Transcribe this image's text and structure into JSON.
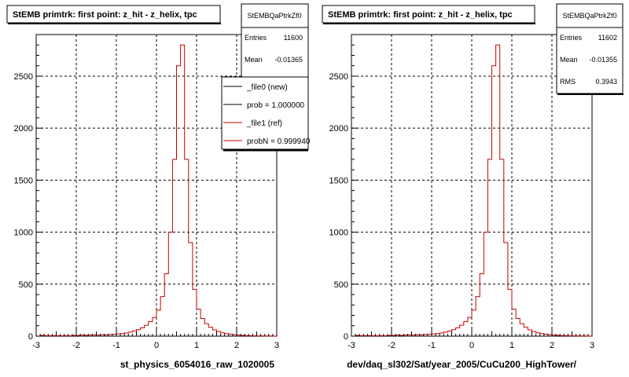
{
  "chart_data": [
    {
      "type": "line",
      "title": "StEMB primtrk: first point: z_hit - z_helix, tpc",
      "xlabel": "st_physics_6054016_raw_1020005",
      "ylabel": "",
      "xlim": [
        -3,
        3
      ],
      "ylim": [
        0,
        2900
      ],
      "xticks": [
        -3,
        -2,
        -1,
        0,
        1,
        2,
        3
      ],
      "yticks": [
        0,
        500,
        1000,
        1500,
        2000,
        2500
      ],
      "grid": true,
      "stats": {
        "name": "StEMBQaPtrkZf0",
        "entries_label": "Entries",
        "entries": "11600",
        "mean_label": "Mean",
        "mean": "-0.01365"
      },
      "legend": {
        "placement": "top-right",
        "entries": [
          {
            "label": "_file0 (new)",
            "color": "#000000"
          },
          {
            "label": "prob = 1.000000",
            "color": "#000000"
          },
          {
            "label": "_file1 (ref)",
            "color": "#cc0000"
          },
          {
            "label": "probN = 0.999940",
            "color": "#cc0000"
          }
        ]
      },
      "series": [
        {
          "name": "_file1 (ref)",
          "color": "#cc0000",
          "bin_width": 0.1,
          "bin_start": -3.0,
          "values": [
            0,
            8,
            5,
            5,
            6,
            5,
            4,
            5,
            4,
            8,
            8,
            10,
            8,
            10,
            12,
            10,
            14,
            12,
            16,
            18,
            22,
            25,
            30,
            40,
            50,
            62,
            80,
            105,
            140,
            180,
            250,
            380,
            600,
            1000,
            1700,
            2600,
            2800,
            1700,
            900,
            450,
            260,
            170,
            120,
            85,
            60,
            45,
            32,
            25,
            18,
            14,
            10,
            8,
            6,
            5,
            4,
            3,
            3,
            2,
            2,
            1
          ]
        }
      ]
    },
    {
      "type": "line",
      "title": "StEMB primtrk: first point: z_hit - z_helix, tpc",
      "xlabel": "dev/daq_sl302/Sat/year_2005/CuCu200_HighTower/",
      "ylabel": "",
      "xlim": [
        -3,
        3
      ],
      "ylim": [
        0,
        2900
      ],
      "xticks": [
        -3,
        -2,
        -1,
        0,
        1,
        2,
        3
      ],
      "yticks": [
        0,
        500,
        1000,
        1500,
        2000,
        2500
      ],
      "grid": true,
      "stats": {
        "name": "StEMBQaPtrkZf0",
        "entries_label": "Entries",
        "entries": "11602",
        "mean_label": "Mean",
        "mean": "-0.01355",
        "rms_label": "RMS",
        "rms": "0.3943"
      },
      "series": [
        {
          "name": "",
          "color": "#cc0000",
          "bin_width": 0.1,
          "bin_start": -3.0,
          "values": [
            0,
            8,
            5,
            5,
            6,
            5,
            4,
            5,
            4,
            8,
            8,
            10,
            8,
            10,
            12,
            10,
            14,
            12,
            16,
            18,
            22,
            25,
            30,
            40,
            50,
            62,
            80,
            105,
            140,
            180,
            250,
            380,
            600,
            1000,
            1700,
            2600,
            2800,
            1700,
            900,
            450,
            260,
            170,
            120,
            85,
            60,
            45,
            32,
            25,
            18,
            14,
            10,
            8,
            6,
            5,
            4,
            3,
            3,
            2,
            2,
            1
          ]
        }
      ]
    }
  ]
}
